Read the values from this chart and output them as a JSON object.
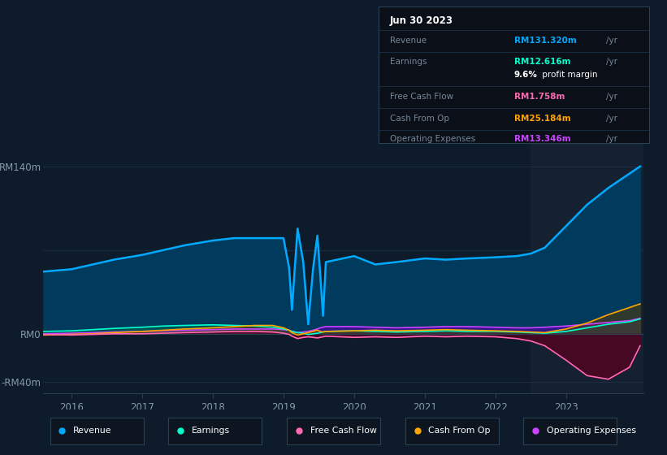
{
  "bg_color": "#0d1b2a",
  "plot_bg_color": "#0d1b2a",
  "highlight_bg": "#152030",
  "grid_color": "#1e3048",
  "ylabel_color": "#8899aa",
  "xlabel_color": "#8899aa",
  "ylim": [
    -50,
    165
  ],
  "xticks": [
    2016,
    2017,
    2018,
    2019,
    2020,
    2021,
    2022,
    2023
  ],
  "xmin": 2015.6,
  "xmax": 2024.1,
  "highlight_start": 2022.5,
  "info_box": {
    "date": "Jun 30 2023",
    "revenue_label": "Revenue",
    "revenue_value": "RM131.320m",
    "revenue_color": "#00aaff",
    "earnings_label": "Earnings",
    "earnings_value": "RM12.616m",
    "earnings_color": "#00ffcc",
    "margin_text": "9.6%",
    "margin_bold": " profit margin",
    "fcf_label": "Free Cash Flow",
    "fcf_value": "RM1.758m",
    "fcf_color": "#ff69b4",
    "cashop_label": "Cash From Op",
    "cashop_value": "RM25.184m",
    "cashop_color": "#ffa500",
    "opex_label": "Operating Expenses",
    "opex_value": "RM13.346m",
    "opex_color": "#cc44ff"
  },
  "series": {
    "x": [
      2015.6,
      2016.0,
      2016.3,
      2016.6,
      2017.0,
      2017.3,
      2017.6,
      2018.0,
      2018.3,
      2018.6,
      2018.85,
      2019.0,
      2019.08,
      2019.12,
      2019.16,
      2019.2,
      2019.28,
      2019.35,
      2019.42,
      2019.48,
      2019.52,
      2019.56,
      2019.6,
      2020.0,
      2020.3,
      2020.6,
      2021.0,
      2021.3,
      2021.6,
      2022.0,
      2022.3,
      2022.5,
      2022.7,
      2023.0,
      2023.3,
      2023.6,
      2023.9,
      2024.05
    ],
    "revenue": [
      52,
      54,
      58,
      62,
      66,
      70,
      74,
      78,
      80,
      80,
      80,
      80,
      55,
      20,
      55,
      88,
      60,
      8,
      55,
      82,
      50,
      15,
      60,
      65,
      58,
      60,
      63,
      62,
      63,
      64,
      65,
      67,
      72,
      90,
      108,
      122,
      134,
      140
    ],
    "earnings": [
      2,
      2.5,
      3.5,
      4.5,
      5.5,
      6.5,
      7,
      7.5,
      7,
      6.5,
      5.5,
      4,
      3,
      2,
      1.5,
      1,
      0.5,
      -0.5,
      0,
      0.5,
      1,
      1.5,
      2,
      2.5,
      2,
      1.5,
      2,
      2.5,
      2,
      2,
      1.5,
      1,
      0.5,
      2,
      5,
      8,
      10,
      12.5
    ],
    "fcf": [
      -0.5,
      -1,
      -0.5,
      0,
      0,
      0.5,
      1,
      1.5,
      2,
      2,
      1.5,
      0.5,
      -0.5,
      -2,
      -3,
      -4,
      -3,
      -2.5,
      -3,
      -3.5,
      -3,
      -2.5,
      -2,
      -3,
      -2.5,
      -3,
      -2,
      -2.5,
      -2,
      -2.5,
      -4,
      -6,
      -10,
      -22,
      -35,
      -38,
      -28,
      -10
    ],
    "cashop": [
      -1,
      -0.5,
      0,
      1,
      2,
      3,
      4,
      5,
      6,
      7,
      7,
      5,
      3,
      1,
      0,
      -1,
      0,
      1,
      2,
      3,
      2,
      1.5,
      2,
      2.5,
      3,
      2.5,
      3,
      3.5,
      3,
      2.5,
      2,
      1.5,
      1,
      4,
      9,
      16,
      22,
      25
    ],
    "opex": [
      0,
      0.5,
      1,
      1.5,
      2,
      2.5,
      3,
      3.5,
      4,
      4,
      4,
      3.5,
      3,
      2,
      1.5,
      1,
      1.5,
      2,
      3,
      4,
      5,
      5.5,
      6,
      6,
      5.5,
      5,
      5.5,
      6,
      6,
      5.5,
      5,
      5,
      5.5,
      6.5,
      8,
      9.5,
      11,
      13
    ]
  },
  "legend": [
    {
      "label": "Revenue",
      "color": "#00aaff"
    },
    {
      "label": "Earnings",
      "color": "#00ffcc"
    },
    {
      "label": "Free Cash Flow",
      "color": "#ff69b4"
    },
    {
      "label": "Cash From Op",
      "color": "#ffa500"
    },
    {
      "label": "Operating Expenses",
      "color": "#cc44ff"
    }
  ]
}
